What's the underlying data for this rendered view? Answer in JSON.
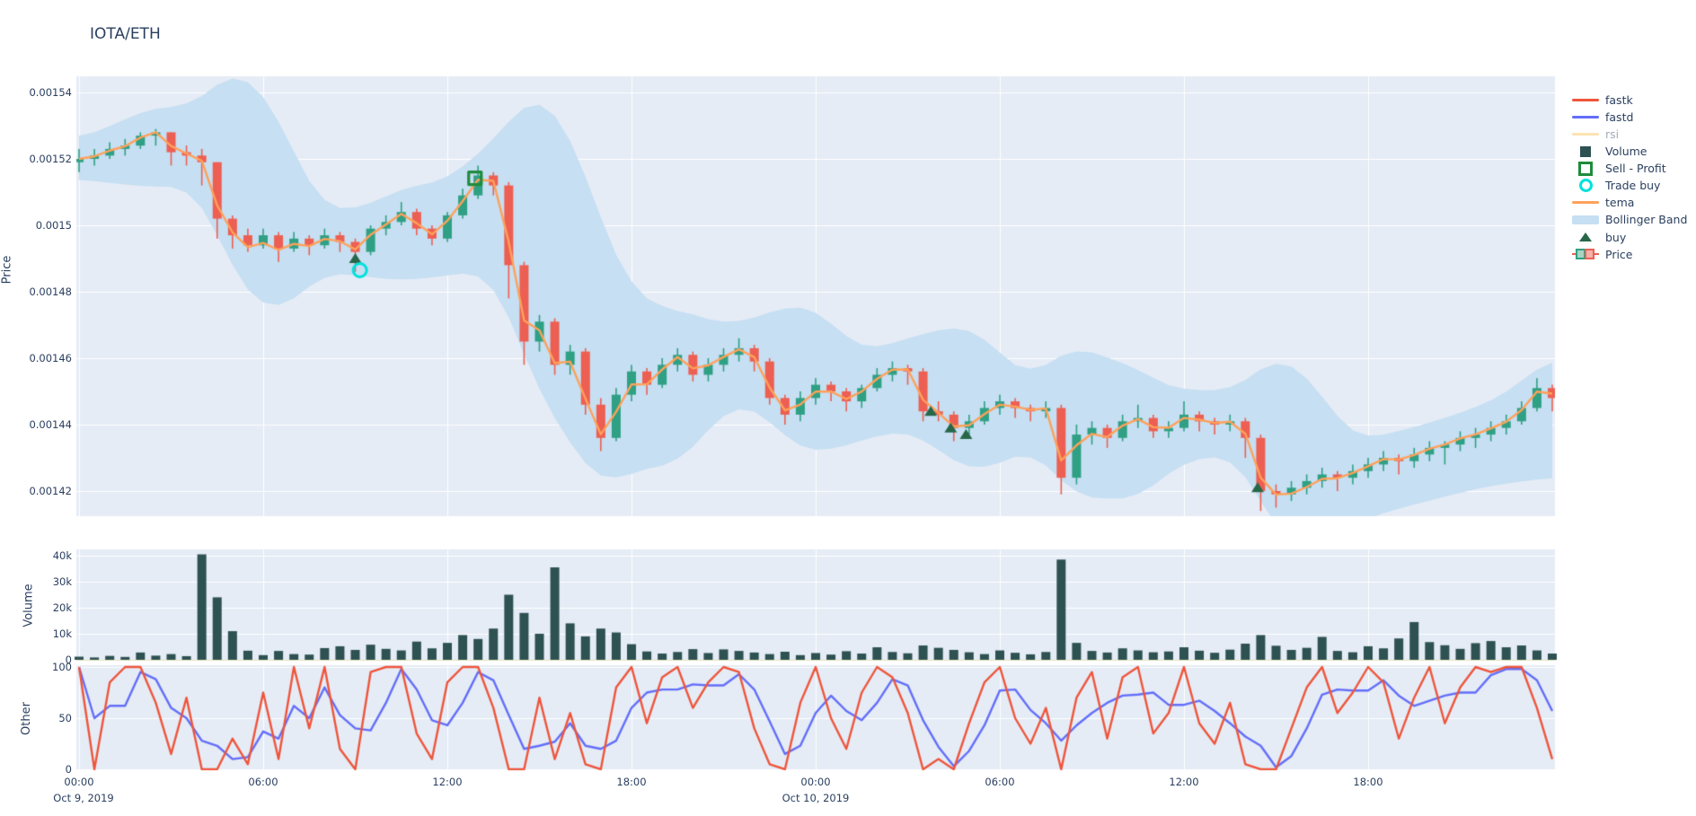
{
  "title": "IOTA/ETH",
  "colors": {
    "panel_bg": "#e5ecf6",
    "grid": "#ffffff",
    "text": "#2a3f5f",
    "muted_text": "#a5abb8",
    "candle_up": "#2fa084",
    "candle_down": "#ed5f52",
    "tema": "#ffa15a",
    "bollinger": "#c6dff2",
    "volume_bar": "#2e5152",
    "fastk": "#ef553b",
    "fastd": "#636efa",
    "rsi_muted": "#fbe3b1",
    "buy_marker": "#276749",
    "sell_profit": "#1e8c3c",
    "trade_buy": "#00e1dd",
    "zeroline": "#e8e5c0"
  },
  "axes": {
    "price": {
      "title": "Price",
      "ticks": [
        {
          "label": "0.00154"
        },
        {
          "label": "0.00152"
        },
        {
          "label": "0.0015"
        },
        {
          "label": "0.00148"
        },
        {
          "label": "0.00146"
        },
        {
          "label": "0.00144"
        },
        {
          "label": "0.00142"
        }
      ]
    },
    "volume": {
      "title": "Volume",
      "ticks": [
        {
          "label": "40k"
        },
        {
          "label": "30k"
        },
        {
          "label": "20k"
        },
        {
          "label": "10k"
        },
        {
          "label": "0"
        }
      ]
    },
    "other": {
      "title": "Other",
      "ticks": [
        {
          "label": "100"
        },
        {
          "label": "50"
        },
        {
          "label": "0"
        }
      ]
    },
    "x": {
      "ticks": [
        {
          "label": "00:00"
        },
        {
          "label": "06:00"
        },
        {
          "label": "12:00"
        },
        {
          "label": "18:00"
        },
        {
          "label": "00:00"
        },
        {
          "label": "06:00"
        },
        {
          "label": "12:00"
        },
        {
          "label": "18:00"
        }
      ],
      "date_labels": [
        {
          "label": "Oct 9, 2019"
        },
        {
          "label": "Oct 10, 2019"
        }
      ]
    }
  },
  "legend": {
    "items": [
      {
        "label": "fastk",
        "type": "line",
        "color": "#ef553b",
        "state": "active"
      },
      {
        "label": "fastd",
        "type": "line",
        "color": "#636efa",
        "state": "active"
      },
      {
        "label": "rsi",
        "type": "line",
        "color": "#fbe3b1",
        "state": "hidden"
      },
      {
        "label": "Volume",
        "type": "square",
        "color": "#2e5152",
        "state": "active"
      },
      {
        "label": "Sell - Profit",
        "type": "open-square",
        "color": "#1e8c3c",
        "state": "active"
      },
      {
        "label": "Trade buy",
        "type": "open-circle",
        "color": "#00e1dd",
        "state": "active"
      },
      {
        "label": "tema",
        "type": "line",
        "color": "#ffa15a",
        "state": "active"
      },
      {
        "label": "Bollinger Band",
        "type": "band",
        "color": "#c6dff2",
        "state": "active"
      },
      {
        "label": "buy",
        "type": "triangle",
        "color": "#276749",
        "state": "active"
      },
      {
        "label": "Price",
        "type": "candles",
        "color": "#2fa084",
        "state": "active"
      }
    ]
  },
  "chart_data": {
    "type": "candlestick+volume+oscillator",
    "pair": "IOTA/ETH",
    "x_start": "Oct 9, 2019 00:00",
    "x_end": "Oct 11, 2019 00:00",
    "interval_hours": 0.5,
    "price_unit": 1e-06,
    "price_ylim": [
      0.001412,
      0.001545
    ],
    "volume_ylim": [
      0,
      43000
    ],
    "oscillator_ylim": [
      0,
      100
    ],
    "grid": true,
    "legend_position": "right-top",
    "panels": [
      "Price",
      "Volume",
      "Other"
    ],
    "candles_ohlc_micro": [
      [
        1519,
        1523,
        1516,
        1520
      ],
      [
        1520,
        1523,
        1518,
        1521
      ],
      [
        1521,
        1525,
        1520,
        1523
      ],
      [
        1523,
        1526,
        1521,
        1524
      ],
      [
        1524,
        1528,
        1523,
        1527
      ],
      [
        1527,
        1529,
        1524,
        1528
      ],
      [
        1528,
        1528,
        1518,
        1522
      ],
      [
        1522,
        1524,
        1518,
        1521
      ],
      [
        1521,
        1523,
        1512,
        1519
      ],
      [
        1519,
        1519,
        1496,
        1502
      ],
      [
        1502,
        1503,
        1493,
        1497
      ],
      [
        1497,
        1499,
        1492,
        1494
      ],
      [
        1494,
        1499,
        1493,
        1497
      ],
      [
        1497,
        1498,
        1489,
        1493
      ],
      [
        1493,
        1498,
        1492,
        1496
      ],
      [
        1496,
        1497,
        1491,
        1494
      ],
      [
        1494,
        1499,
        1493,
        1497
      ],
      [
        1497,
        1498,
        1492,
        1495
      ],
      [
        1495,
        1496,
        1486,
        1492
      ],
      [
        1492,
        1500,
        1491,
        1499
      ],
      [
        1499,
        1503,
        1497,
        1501
      ],
      [
        1501,
        1507,
        1500,
        1504
      ],
      [
        1504,
        1505,
        1497,
        1499
      ],
      [
        1499,
        1500,
        1494,
        1496
      ],
      [
        1496,
        1504,
        1495,
        1503
      ],
      [
        1503,
        1511,
        1502,
        1509
      ],
      [
        1509,
        1518,
        1508,
        1515
      ],
      [
        1515,
        1516,
        1509,
        1512
      ],
      [
        1512,
        1513,
        1478,
        1488
      ],
      [
        1488,
        1489,
        1458,
        1465
      ],
      [
        1465,
        1473,
        1462,
        1471
      ],
      [
        1471,
        1472,
        1455,
        1458
      ],
      [
        1458,
        1464,
        1455,
        1462
      ],
      [
        1462,
        1463,
        1443,
        1446
      ],
      [
        1446,
        1448,
        1432,
        1436
      ],
      [
        1436,
        1451,
        1435,
        1449
      ],
      [
        1449,
        1458,
        1447,
        1456
      ],
      [
        1456,
        1457,
        1449,
        1452
      ],
      [
        1452,
        1460,
        1451,
        1458
      ],
      [
        1458,
        1463,
        1456,
        1461
      ],
      [
        1461,
        1462,
        1453,
        1455
      ],
      [
        1455,
        1460,
        1453,
        1458
      ],
      [
        1458,
        1463,
        1456,
        1461
      ],
      [
        1461,
        1466,
        1459,
        1463
      ],
      [
        1463,
        1464,
        1456,
        1459
      ],
      [
        1459,
        1460,
        1446,
        1448
      ],
      [
        1448,
        1449,
        1440,
        1443
      ],
      [
        1443,
        1450,
        1441,
        1448
      ],
      [
        1448,
        1454,
        1446,
        1452
      ],
      [
        1452,
        1453,
        1447,
        1450
      ],
      [
        1450,
        1451,
        1444,
        1447
      ],
      [
        1447,
        1452,
        1445,
        1451
      ],
      [
        1451,
        1457,
        1450,
        1455
      ],
      [
        1455,
        1459,
        1453,
        1457
      ],
      [
        1457,
        1458,
        1452,
        1456
      ],
      [
        1456,
        1457,
        1441,
        1444
      ],
      [
        1444,
        1447,
        1441,
        1443
      ],
      [
        1443,
        1444,
        1435,
        1439
      ],
      [
        1439,
        1443,
        1437,
        1441
      ],
      [
        1441,
        1447,
        1440,
        1445
      ],
      [
        1445,
        1449,
        1443,
        1447
      ],
      [
        1447,
        1448,
        1442,
        1445
      ],
      [
        1445,
        1446,
        1441,
        1444
      ],
      [
        1444,
        1447,
        1442,
        1445
      ],
      [
        1445,
        1446,
        1419,
        1424
      ],
      [
        1424,
        1440,
        1422,
        1437
      ],
      [
        1437,
        1441,
        1434,
        1439
      ],
      [
        1439,
        1440,
        1433,
        1436
      ],
      [
        1436,
        1443,
        1435,
        1441
      ],
      [
        1441,
        1446,
        1439,
        1442
      ],
      [
        1442,
        1443,
        1436,
        1438
      ],
      [
        1438,
        1441,
        1436,
        1439
      ],
      [
        1439,
        1447,
        1438,
        1443
      ],
      [
        1443,
        1444,
        1438,
        1441
      ],
      [
        1441,
        1442,
        1437,
        1440
      ],
      [
        1440,
        1443,
        1438,
        1441
      ],
      [
        1441,
        1442,
        1430,
        1436
      ],
      [
        1436,
        1437,
        1414,
        1420
      ],
      [
        1420,
        1422,
        1415,
        1419
      ],
      [
        1419,
        1423,
        1417,
        1421
      ],
      [
        1421,
        1425,
        1419,
        1423
      ],
      [
        1423,
        1427,
        1421,
        1425
      ],
      [
        1425,
        1426,
        1420,
        1424
      ],
      [
        1424,
        1428,
        1422,
        1426
      ],
      [
        1426,
        1430,
        1424,
        1428
      ],
      [
        1428,
        1432,
        1426,
        1430
      ],
      [
        1430,
        1431,
        1425,
        1429
      ],
      [
        1429,
        1433,
        1427,
        1431
      ],
      [
        1431,
        1435,
        1429,
        1433
      ],
      [
        1433,
        1435,
        1428,
        1434
      ],
      [
        1434,
        1438,
        1432,
        1436
      ],
      [
        1436,
        1439,
        1433,
        1437
      ],
      [
        1437,
        1441,
        1435,
        1439
      ],
      [
        1439,
        1443,
        1437,
        1441
      ],
      [
        1441,
        1447,
        1440,
        1445
      ],
      [
        1445,
        1454,
        1444,
        1451
      ],
      [
        1451,
        1452,
        1444,
        1448
      ]
    ],
    "volume": [
      1200,
      900,
      1500,
      1100,
      2800,
      1600,
      2200,
      1400,
      40500,
      24000,
      11000,
      3500,
      1800,
      3400,
      2200,
      2000,
      4500,
      5200,
      3800,
      5800,
      4200,
      3600,
      7000,
      4400,
      6500,
      9500,
      8000,
      12000,
      25000,
      18000,
      10000,
      35500,
      14000,
      9000,
      12000,
      10500,
      6000,
      3200,
      2400,
      3000,
      4100,
      2600,
      4000,
      3400,
      2800,
      2200,
      3100,
      1800,
      2600,
      2000,
      3300,
      2400,
      4800,
      3000,
      2500,
      5500,
      4600,
      3800,
      2900,
      2200,
      3600,
      2700,
      2100,
      3000,
      38500,
      6500,
      3400,
      2800,
      4400,
      3600,
      2900,
      3200,
      4800,
      3500,
      2700,
      3900,
      6200,
      9500,
      5400,
      3800,
      4600,
      8800,
      3400,
      2900,
      5200,
      4400,
      8200,
      14500,
      6800,
      5600,
      4200,
      6400,
      7200,
      4800,
      5500,
      3600,
      2400
    ],
    "fastk": [
      100,
      0,
      85,
      100,
      100,
      65,
      15,
      70,
      0,
      0,
      30,
      5,
      75,
      10,
      100,
      40,
      100,
      20,
      0,
      95,
      100,
      100,
      35,
      10,
      85,
      100,
      100,
      60,
      0,
      0,
      70,
      10,
      55,
      5,
      0,
      80,
      100,
      45,
      90,
      100,
      60,
      85,
      100,
      95,
      40,
      5,
      0,
      65,
      100,
      50,
      20,
      75,
      100,
      90,
      55,
      0,
      10,
      0,
      45,
      85,
      100,
      50,
      25,
      60,
      0,
      70,
      95,
      30,
      90,
      100,
      35,
      55,
      100,
      45,
      25,
      65,
      5,
      0,
      0,
      40,
      80,
      100,
      55,
      75,
      100,
      85,
      30,
      70,
      100,
      45,
      80,
      100,
      95,
      100,
      100,
      60,
      10
    ],
    "fastd": [
      100,
      50,
      62,
      62,
      95,
      88,
      60,
      50,
      28,
      23,
      10,
      12,
      37,
      30,
      62,
      50,
      80,
      53,
      40,
      38,
      65,
      98,
      78,
      48,
      43,
      65,
      95,
      87,
      53,
      20,
      23,
      27,
      45,
      23,
      20,
      28,
      60,
      75,
      78,
      78,
      83,
      82,
      82,
      93,
      78,
      47,
      15,
      23,
      55,
      72,
      57,
      48,
      65,
      88,
      82,
      48,
      22,
      3,
      18,
      43,
      77,
      78,
      58,
      45,
      28,
      43,
      55,
      65,
      72,
      73,
      75,
      63,
      63,
      67,
      57,
      45,
      32,
      23,
      2,
      13,
      40,
      73,
      78,
      77,
      77,
      87,
      72,
      62,
      67,
      72,
      75,
      75,
      92,
      98,
      98,
      87,
      57
    ],
    "markers": {
      "buy": [
        {
          "t_hours": 9.0,
          "price_micro": 1490
        },
        {
          "t_hours": 27.75,
          "price_micro": 1444
        },
        {
          "t_hours": 28.4,
          "price_micro": 1439
        },
        {
          "t_hours": 28.9,
          "price_micro": 1437
        },
        {
          "t_hours": 38.4,
          "price_micro": 1421
        }
      ],
      "trade_buy": [
        {
          "t_hours": 9.15,
          "price_micro": 1490
        }
      ],
      "sell_profit": [
        {
          "t_hours": 12.9,
          "price_micro": 1512
        }
      ]
    }
  }
}
